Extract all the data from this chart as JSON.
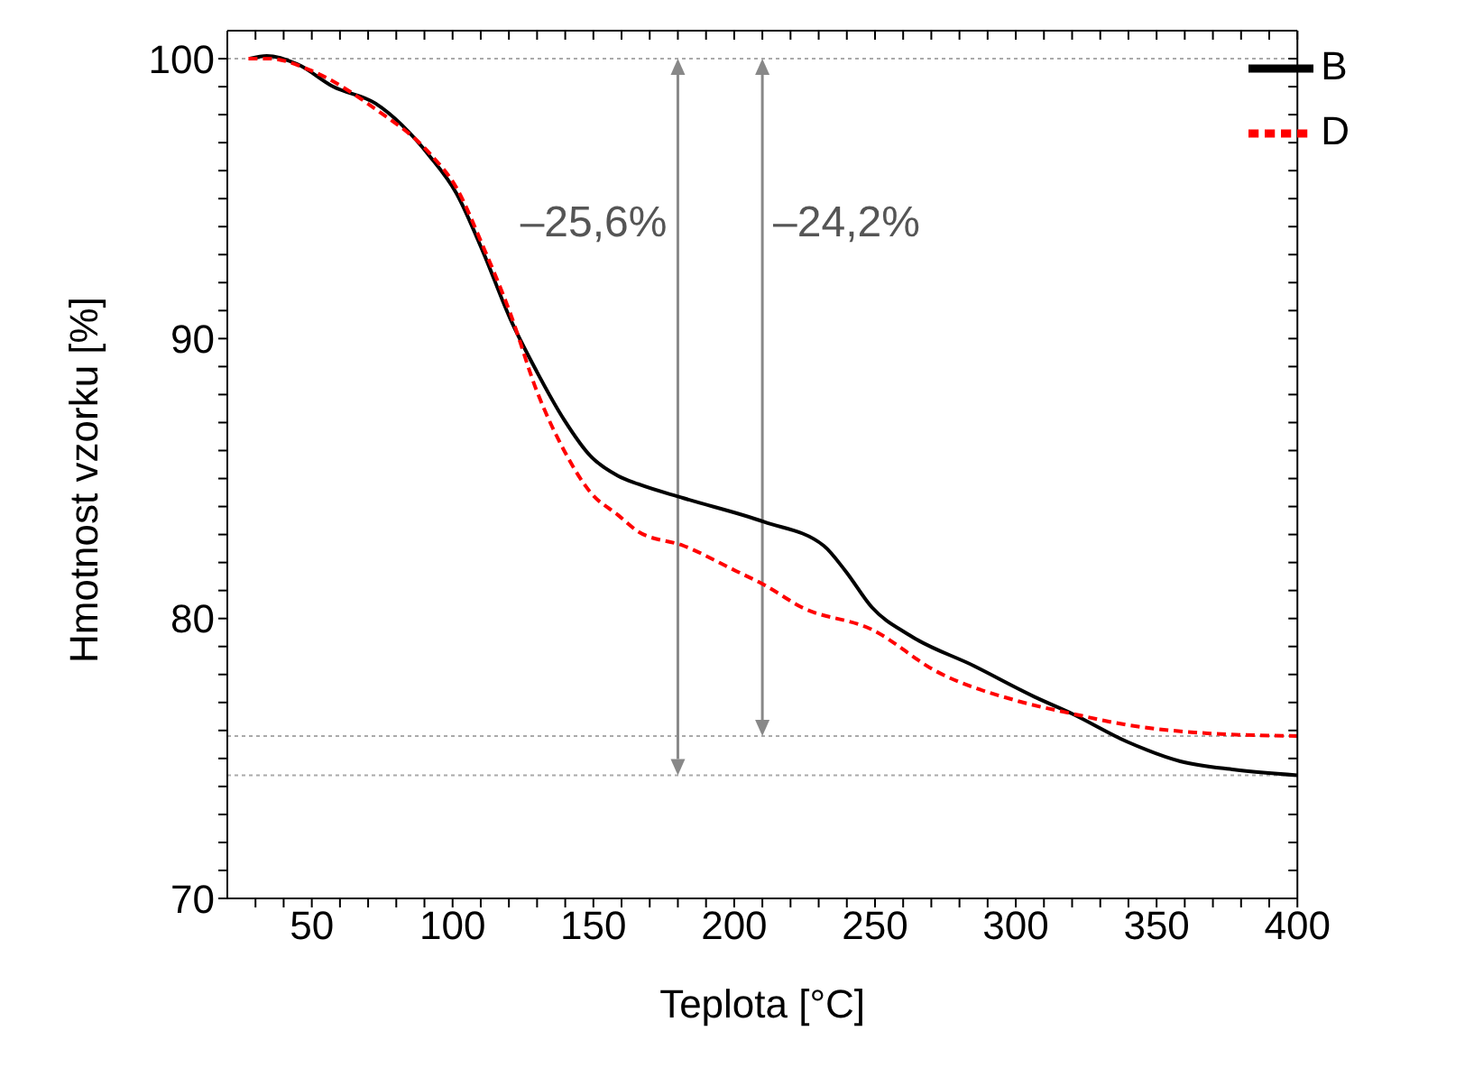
{
  "chart_data": {
    "type": "line",
    "xlabel": "Teplota [°C]",
    "ylabel": "Hmotnost vzorku [%]",
    "xlim": [
      20,
      400
    ],
    "ylim": [
      70,
      101
    ],
    "xticks": [
      {
        "value": 30,
        "label": null
      },
      {
        "value": 40,
        "label": null
      },
      50,
      {
        "value": 60,
        "label": null
      },
      {
        "value": 70,
        "label": null
      },
      {
        "value": 80,
        "label": null
      },
      {
        "value": 90,
        "label": null
      },
      100,
      {
        "value": 110,
        "label": null
      },
      {
        "value": 120,
        "label": null
      },
      {
        "value": 130,
        "label": null
      },
      {
        "value": 140,
        "label": null
      },
      150,
      {
        "value": 160,
        "label": null
      },
      {
        "value": 170,
        "label": null
      },
      {
        "value": 180,
        "label": null
      },
      {
        "value": 190,
        "label": null
      },
      200,
      {
        "value": 210,
        "label": null
      },
      {
        "value": 220,
        "label": null
      },
      {
        "value": 230,
        "label": null
      },
      {
        "value": 240,
        "label": null
      },
      250,
      {
        "value": 260,
        "label": null
      },
      {
        "value": 270,
        "label": null
      },
      {
        "value": 280,
        "label": null
      },
      {
        "value": 290,
        "label": null
      },
      300,
      {
        "value": 310,
        "label": null
      },
      {
        "value": 320,
        "label": null
      },
      {
        "value": 330,
        "label": null
      },
      {
        "value": 340,
        "label": null
      },
      350,
      {
        "value": 360,
        "label": null
      },
      {
        "value": 370,
        "label": null
      },
      {
        "value": 380,
        "label": null
      },
      {
        "value": 390,
        "label": null
      },
      400
    ],
    "yticks": [
      70,
      {
        "value": 71,
        "label": null
      },
      {
        "value": 72,
        "label": null
      },
      {
        "value": 73,
        "label": null
      },
      {
        "value": 74,
        "label": null
      },
      {
        "value": 75,
        "label": null
      },
      {
        "value": 76,
        "label": null
      },
      {
        "value": 77,
        "label": null
      },
      {
        "value": 78,
        "label": null
      },
      {
        "value": 79,
        "label": null
      },
      80,
      {
        "value": 81,
        "label": null
      },
      {
        "value": 82,
        "label": null
      },
      {
        "value": 83,
        "label": null
      },
      {
        "value": 84,
        "label": null
      },
      {
        "value": 85,
        "label": null
      },
      {
        "value": 86,
        "label": null
      },
      {
        "value": 87,
        "label": null
      },
      {
        "value": 88,
        "label": null
      },
      {
        "value": 89,
        "label": null
      },
      90,
      {
        "value": 91,
        "label": null
      },
      {
        "value": 92,
        "label": null
      },
      {
        "value": 93,
        "label": null
      },
      {
        "value": 94,
        "label": null
      },
      {
        "value": 95,
        "label": null
      },
      {
        "value": 96,
        "label": null
      },
      {
        "value": 97,
        "label": null
      },
      {
        "value": 98,
        "label": null
      },
      {
        "value": 99,
        "label": null
      },
      100
    ],
    "grid": false,
    "legend": "top right",
    "marker": "none",
    "series": [
      {
        "name": "B",
        "color": "#000000",
        "line_style": "solid",
        "x": [
          28,
          34,
          45,
          57.6,
          72.6,
          92,
          101.3,
          110.8,
          120.5,
          130,
          139.6,
          149,
          158.7,
          166,
          182,
          210.7,
          231.8,
          239.5,
          248.9,
          262.3,
          285.3,
          306.7,
          320,
          339.5,
          358.4,
          377.6,
          400
        ],
        "values": [
          100,
          100.1,
          99.8,
          99,
          98.4,
          96.5,
          95.2,
          93.1,
          90.7,
          88.8,
          87.1,
          85.8,
          85.1,
          84.8,
          84.3,
          83.45,
          82.6,
          81.7,
          80.4,
          79.4,
          78.3,
          77.2,
          76.6,
          75.6,
          74.9,
          74.6,
          74.4
        ]
      },
      {
        "name": "D",
        "color": "#ff0000",
        "line_style": "dashed",
        "x": [
          27.5,
          35,
          49.1,
          72.6,
          92,
          101.3,
          110.8,
          120.5,
          130,
          139.6,
          149,
          158.7,
          166,
          182,
          200.6,
          210.7,
          224,
          249,
          272,
          300.8,
          320,
          339.5,
          368,
          400
        ],
        "values": [
          100,
          100,
          99.6,
          98.2,
          96.6,
          95.4,
          93.3,
          90.9,
          88.1,
          86,
          84.5,
          83.7,
          83.1,
          82.6,
          81.7,
          81.2,
          80.4,
          79.6,
          78.1,
          77.05,
          76.6,
          76.2,
          75.9,
          75.8
        ]
      }
    ],
    "ref_lines": [
      {
        "axis": "y",
        "value": 100,
        "color": "#aaaaaa",
        "line_style": "dotted"
      },
      {
        "axis": "y",
        "value": 74.4,
        "color": "#aaaaaa",
        "line_style": "dotted"
      },
      {
        "axis": "y",
        "value": 75.8,
        "color": "#aaaaaa",
        "line_style": "dotted"
      },
      {
        "axis": "x",
        "value": 180,
        "label": "–25,6%",
        "color": "#888888",
        "line_style": "solid"
      },
      {
        "axis": "x",
        "value": 210,
        "label": "–24,2%",
        "color": "#888888",
        "line_style": "solid"
      }
    ]
  }
}
